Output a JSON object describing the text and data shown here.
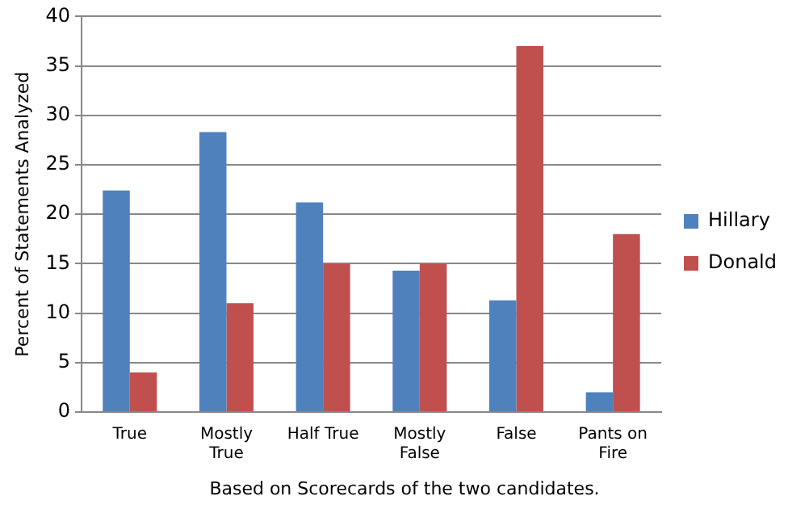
{
  "chart_data": {
    "type": "bar",
    "ylabel": "Percent of Statements Analyzed",
    "categories": [
      "True",
      "Mostly True",
      "Half True",
      "Mostly False",
      "False",
      "Pants on Fire"
    ],
    "series": [
      {
        "name": "Hillary",
        "color": "#4f81bd",
        "values": [
          22.4,
          28.3,
          21.2,
          14.3,
          11.3,
          2.0
        ]
      },
      {
        "name": "Donald",
        "color": "#c0504d",
        "values": [
          4,
          11,
          15,
          15,
          37,
          18
        ]
      }
    ],
    "ylim": [
      0,
      40
    ],
    "yticks": [
      0,
      5,
      10,
      15,
      20,
      25,
      30,
      35,
      40
    ],
    "grid": "y",
    "legend": "right",
    "annotations": [
      "Based on Scorecards of the two candidates."
    ]
  }
}
